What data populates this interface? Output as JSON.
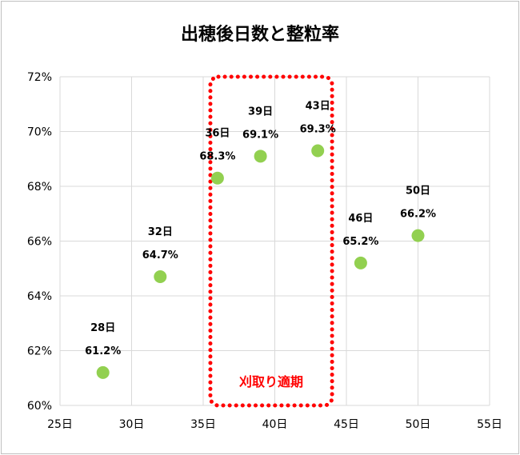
{
  "chart_data": {
    "type": "scatter",
    "title": "出穂後日数と整粒率",
    "xlabel": "",
    "ylabel": "",
    "xlim": [
      25,
      55
    ],
    "ylim": [
      60,
      72
    ],
    "x_ticks": [
      25,
      30,
      35,
      40,
      45,
      50,
      55
    ],
    "x_tick_labels": [
      "25日",
      "30日",
      "35日",
      "40日",
      "45日",
      "50日",
      "55日"
    ],
    "y_ticks": [
      60,
      62,
      64,
      66,
      68,
      70,
      72
    ],
    "y_tick_labels": [
      "60%",
      "62%",
      "64%",
      "66%",
      "68%",
      "70%",
      "72%"
    ],
    "grid": true,
    "legend": "none",
    "point_color": "#92d050",
    "series": [
      {
        "points": [
          {
            "x": 28,
            "y": 61.2,
            "label_day": "28日",
            "label_value": "61.2%"
          },
          {
            "x": 32,
            "y": 64.7,
            "label_day": "32日",
            "label_value": "64.7%"
          },
          {
            "x": 36,
            "y": 68.3,
            "label_day": "36日",
            "label_value": "68.3%"
          },
          {
            "x": 39,
            "y": 69.1,
            "label_day": "39日",
            "label_value": "69.1%"
          },
          {
            "x": 43,
            "y": 69.3,
            "label_day": "43日",
            "label_value": "69.3%"
          },
          {
            "x": 46,
            "y": 65.2,
            "label_day": "46日",
            "label_value": "65.2%"
          },
          {
            "x": 50,
            "y": 66.2,
            "label_day": "50日",
            "label_value": "66.2%"
          }
        ]
      }
    ],
    "annotation": {
      "text": "刈取り適期",
      "x_range": [
        35.5,
        44
      ],
      "y_range": [
        60,
        72
      ],
      "color": "#ff0000",
      "style": "dotted-rounded-box"
    }
  }
}
